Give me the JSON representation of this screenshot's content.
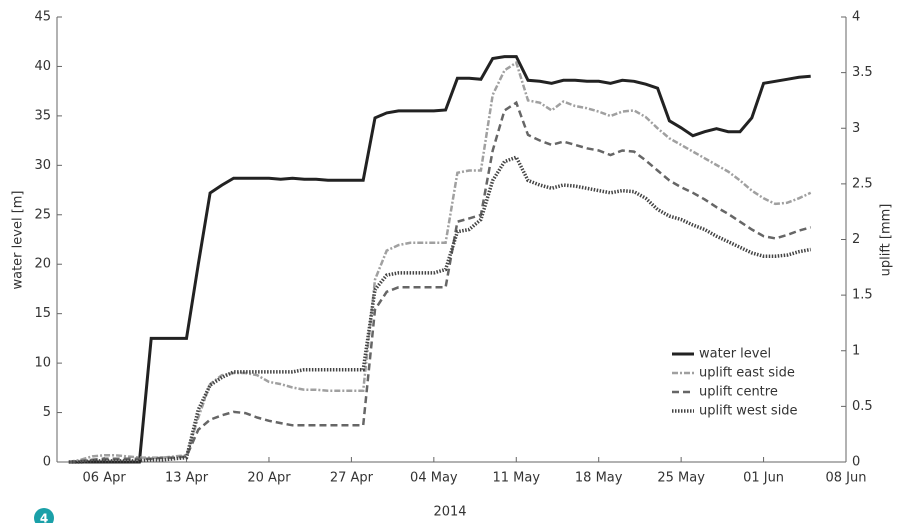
{
  "chart_data": {
    "type": "line",
    "xlabel": "2014",
    "ylabel": "water level [m]",
    "y2label": "uplift [mm]",
    "badge": "4",
    "x": [
      "2014-04-03",
      "2014-04-04",
      "2014-04-05",
      "2014-04-06",
      "2014-04-07",
      "2014-04-08",
      "2014-04-09",
      "2014-04-10",
      "2014-04-11",
      "2014-04-12",
      "2014-04-13",
      "2014-04-14",
      "2014-04-15",
      "2014-04-16",
      "2014-04-17",
      "2014-04-18",
      "2014-04-19",
      "2014-04-20",
      "2014-04-21",
      "2014-04-22",
      "2014-04-23",
      "2014-04-24",
      "2014-04-25",
      "2014-04-26",
      "2014-04-27",
      "2014-04-28",
      "2014-04-29",
      "2014-04-30",
      "2014-05-01",
      "2014-05-02",
      "2014-05-03",
      "2014-05-04",
      "2014-05-05",
      "2014-05-06",
      "2014-05-07",
      "2014-05-08",
      "2014-05-09",
      "2014-05-10",
      "2014-05-11",
      "2014-05-12",
      "2014-05-13",
      "2014-05-14",
      "2014-05-15",
      "2014-05-16",
      "2014-05-17",
      "2014-05-18",
      "2014-05-19",
      "2014-05-20",
      "2014-05-21",
      "2014-05-22",
      "2014-05-23",
      "2014-05-24",
      "2014-05-25",
      "2014-05-26",
      "2014-05-27",
      "2014-05-28",
      "2014-05-29",
      "2014-05-30",
      "2014-05-31",
      "2014-06-01",
      "2014-06-02",
      "2014-06-03",
      "2014-06-04",
      "2014-06-05"
    ],
    "series": [
      {
        "name": "water level",
        "color": "#222222",
        "style": "solid",
        "axis": "y",
        "values": [
          0,
          0,
          0,
          0,
          0,
          0,
          0,
          12.5,
          12.5,
          12.5,
          12.5,
          20,
          27.2,
          28,
          28.7,
          28.7,
          28.7,
          28.7,
          28.6,
          28.7,
          28.6,
          28.6,
          28.5,
          28.5,
          28.5,
          28.5,
          34.8,
          35.3,
          35.5,
          35.5,
          35.5,
          35.5,
          35.6,
          38.8,
          38.8,
          38.7,
          40.8,
          41,
          41,
          38.6,
          38.5,
          38.3,
          38.6,
          38.6,
          38.5,
          38.5,
          38.3,
          38.6,
          38.5,
          38.2,
          37.8,
          34.5,
          33.8,
          33,
          33.4,
          33.7,
          33.4,
          33.4,
          34.8,
          38.3,
          38.5,
          38.7,
          38.9,
          39
        ]
      },
      {
        "name": "uplift east side",
        "color": "#a0a0a0",
        "style": "dashdot",
        "axis": "y2",
        "values": [
          0,
          0.02,
          0.05,
          0.06,
          0.06,
          0.05,
          0.04,
          0.04,
          0.04,
          0.05,
          0.06,
          0.4,
          0.7,
          0.78,
          0.8,
          0.8,
          0.78,
          0.72,
          0.7,
          0.67,
          0.65,
          0.65,
          0.64,
          0.64,
          0.64,
          0.64,
          1.64,
          1.9,
          1.95,
          1.97,
          1.97,
          1.97,
          1.97,
          2.6,
          2.62,
          2.62,
          3.3,
          3.52,
          3.59,
          3.25,
          3.23,
          3.16,
          3.24,
          3.2,
          3.18,
          3.15,
          3.11,
          3.15,
          3.16,
          3.1,
          3.0,
          2.91,
          2.85,
          2.79,
          2.73,
          2.67,
          2.61,
          2.53,
          2.44,
          2.37,
          2.32,
          2.33,
          2.37,
          2.42
        ]
      },
      {
        "name": "uplift centre",
        "color": "#666666",
        "style": "dashed",
        "axis": "y2",
        "values": [
          0,
          0.01,
          0.02,
          0.03,
          0.03,
          0.03,
          0.03,
          0.03,
          0.04,
          0.04,
          0.05,
          0.29,
          0.38,
          0.42,
          0.45,
          0.44,
          0.4,
          0.37,
          0.35,
          0.33,
          0.33,
          0.33,
          0.33,
          0.33,
          0.33,
          0.33,
          1.37,
          1.53,
          1.57,
          1.57,
          1.57,
          1.57,
          1.57,
          2.16,
          2.19,
          2.22,
          2.8,
          3.16,
          3.23,
          2.94,
          2.89,
          2.85,
          2.88,
          2.85,
          2.82,
          2.8,
          2.76,
          2.8,
          2.79,
          2.71,
          2.62,
          2.53,
          2.47,
          2.42,
          2.36,
          2.29,
          2.23,
          2.16,
          2.09,
          2.03,
          2.01,
          2.04,
          2.08,
          2.11
        ]
      },
      {
        "name": "uplift west side",
        "color": "#444444",
        "style": "dotted",
        "axis": "y2",
        "values": [
          0,
          0,
          0.01,
          0.01,
          0.01,
          0.01,
          0.01,
          0.02,
          0.02,
          0.03,
          0.04,
          0.47,
          0.69,
          0.76,
          0.81,
          0.81,
          0.81,
          0.81,
          0.81,
          0.81,
          0.83,
          0.83,
          0.83,
          0.83,
          0.83,
          0.83,
          1.55,
          1.68,
          1.7,
          1.7,
          1.7,
          1.7,
          1.73,
          2.07,
          2.09,
          2.18,
          2.53,
          2.7,
          2.74,
          2.53,
          2.49,
          2.46,
          2.49,
          2.48,
          2.46,
          2.44,
          2.42,
          2.44,
          2.43,
          2.37,
          2.27,
          2.21,
          2.18,
          2.13,
          2.09,
          2.03,
          1.98,
          1.93,
          1.88,
          1.85,
          1.85,
          1.86,
          1.89,
          1.91
        ]
      }
    ],
    "xlim": [
      "2014-04-02",
      "2014-06-08"
    ],
    "xticks": [
      {
        "value": "2014-04-06",
        "label": "06 Apr"
      },
      {
        "value": "2014-04-13",
        "label": "13 Apr"
      },
      {
        "value": "2014-04-20",
        "label": "20 Apr"
      },
      {
        "value": "2014-04-27",
        "label": "27 Apr"
      },
      {
        "value": "2014-05-04",
        "label": "04 May"
      },
      {
        "value": "2014-05-11",
        "label": "11 May"
      },
      {
        "value": "2014-05-18",
        "label": "18 May"
      },
      {
        "value": "2014-05-25",
        "label": "25 May"
      },
      {
        "value": "2014-06-01",
        "label": "01 Jun"
      },
      {
        "value": "2014-06-08",
        "label": "08 Jun"
      }
    ],
    "ylim": [
      0,
      45
    ],
    "yticks": [
      0,
      5,
      10,
      15,
      20,
      25,
      30,
      35,
      40,
      45
    ],
    "y2lim": [
      0,
      4
    ],
    "y2ticks": [
      0,
      0.5,
      1,
      1.5,
      2,
      2.5,
      3,
      3.5,
      4
    ],
    "grid": false,
    "legend": "lower right"
  }
}
